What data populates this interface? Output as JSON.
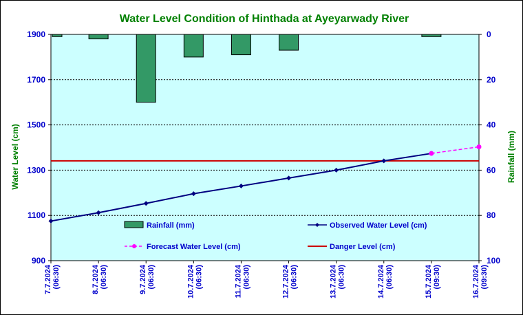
{
  "chart_data": {
    "type": "bar+line",
    "title": "Water Level Condition of Hinthada at Ayeyarwady River",
    "y_left_label": "Water Level (cm)",
    "y_right_label": "Rainfall (mm)",
    "y_left_range": [
      900,
      1900
    ],
    "y_left_ticks": [
      "1900",
      "1700",
      "1500",
      "1300",
      "1100",
      "900"
    ],
    "y_right_range_inverted": [
      0,
      100
    ],
    "y_right_ticks": [
      "0",
      "20",
      "40",
      "60",
      "80",
      "100"
    ],
    "categories": [
      [
        "7.7.2024",
        "(06:30)"
      ],
      [
        "8.7.2024",
        "(06:30)"
      ],
      [
        "9.7.2024",
        "(06:30)"
      ],
      [
        "10.7.2024",
        "(06:30)"
      ],
      [
        "11.7.2024",
        "(06:30)"
      ],
      [
        "12.7.2024",
        "(06:30)"
      ],
      [
        "13.7.2024",
        "(06:30)"
      ],
      [
        "14.7.2024",
        "(06:30)"
      ],
      [
        "15.7.2024",
        "(09:30)"
      ],
      [
        "16.7.2024",
        "(09:30)"
      ]
    ],
    "rainfall_mm": [
      1,
      2,
      30,
      10,
      9,
      7,
      0,
      0,
      1,
      0
    ],
    "observed_water_level_cm": [
      1075,
      1112,
      1153,
      1196,
      1230,
      1265,
      1300,
      1341,
      1374,
      null
    ],
    "forecast_water_level_cm": [
      null,
      null,
      null,
      null,
      null,
      null,
      null,
      null,
      1374,
      1403
    ],
    "danger_level_cm": 1341,
    "legend": {
      "rainfall": "Rainfall (mm)",
      "observed": "Observed Water Level (cm)",
      "forecast": "Forecast Water Level (cm)",
      "danger": "Danger Level (cm)"
    },
    "colors": {
      "plot_bg": "#ccffff",
      "rainfall": "#339966",
      "observed": "#000080",
      "forecast": "#ff00ff",
      "danger": "#cc0000",
      "title": "#008000",
      "axis_text": "#0000cc",
      "right_axis_text": "#008000"
    }
  }
}
